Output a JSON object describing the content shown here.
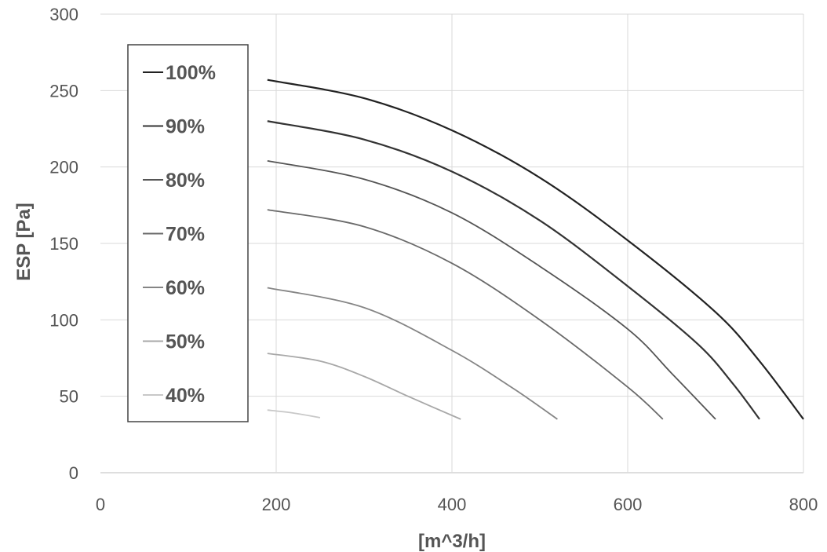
{
  "chart_data": {
    "type": "line",
    "title": "",
    "xlabel": "[m^3/h]",
    "ylabel": "ESP [Pa]",
    "xlim": [
      0,
      800
    ],
    "ylim": [
      0,
      300
    ],
    "x_ticks": [
      0,
      200,
      400,
      600,
      800
    ],
    "y_ticks": [
      0,
      50,
      100,
      150,
      200,
      250,
      300
    ],
    "grid": true,
    "legend_position": "top-left",
    "series": [
      {
        "name": "100%",
        "color": "#222222",
        "x": [
          190,
          300,
          400,
          500,
          600,
          700,
          750,
          800
        ],
        "y": [
          257,
          245,
          224,
          193,
          152,
          105,
          73,
          35
        ]
      },
      {
        "name": "90%",
        "color": "#333333",
        "x": [
          190,
          300,
          400,
          500,
          600,
          680,
          720,
          750
        ],
        "y": [
          230,
          218,
          197,
          165,
          122,
          84,
          58,
          35
        ]
      },
      {
        "name": "80%",
        "color": "#555555",
        "x": [
          190,
          300,
          400,
          500,
          600,
          650,
          700
        ],
        "y": [
          204,
          192,
          170,
          135,
          94,
          65,
          35
        ]
      },
      {
        "name": "70%",
        "color": "#6a6a6a",
        "x": [
          190,
          300,
          400,
          500,
          600,
          640
        ],
        "y": [
          172,
          161,
          137,
          100,
          56,
          35
        ]
      },
      {
        "name": "60%",
        "color": "#858585",
        "x": [
          190,
          300,
          400,
          470,
          520
        ],
        "y": [
          121,
          108,
          80,
          55,
          35
        ]
      },
      {
        "name": "50%",
        "color": "#a8a8a8",
        "x": [
          190,
          250,
          300,
          350,
          410
        ],
        "y": [
          78,
          73,
          63,
          50,
          35
        ]
      },
      {
        "name": "40%",
        "color": "#c8c8c8",
        "x": [
          190,
          220,
          250
        ],
        "y": [
          41,
          39,
          36
        ]
      }
    ]
  }
}
